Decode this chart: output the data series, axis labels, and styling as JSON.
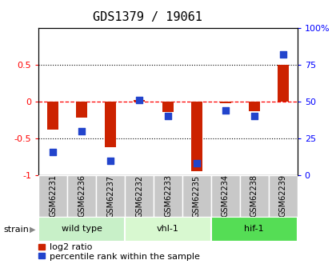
{
  "title": "GDS1379 / 19061",
  "samples": [
    "GSM62231",
    "GSM62236",
    "GSM62237",
    "GSM62232",
    "GSM62233",
    "GSM62235",
    "GSM62234",
    "GSM62238",
    "GSM62239"
  ],
  "log2_ratio": [
    -0.38,
    -0.22,
    -0.62,
    0.02,
    -0.14,
    -0.95,
    -0.02,
    -0.13,
    0.5
  ],
  "percentile_rank": [
    16,
    30,
    10,
    51,
    40,
    8,
    44,
    40,
    82
  ],
  "groups": [
    {
      "label": "wild type",
      "start": 0,
      "end": 3,
      "color": "#c8f0c8"
    },
    {
      "label": "vhl-1",
      "start": 3,
      "end": 6,
      "color": "#d8f8d0"
    },
    {
      "label": "hif-1",
      "start": 6,
      "end": 9,
      "color": "#55dd55"
    }
  ],
  "bar_color": "#cc2200",
  "dot_color": "#2244cc",
  "ylim_left": [
    -1,
    1
  ],
  "ylim_right": [
    0,
    100
  ],
  "hlines_dotted": [
    0.5,
    -0.5
  ],
  "legend_red": "log2 ratio",
  "legend_blue": "percentile rank within the sample",
  "ylabel_left_ticks": [
    -1,
    -0.5,
    0,
    0.5
  ],
  "ylabel_right_ticks": [
    0,
    25,
    50,
    75,
    100
  ],
  "title_fontsize": 11,
  "label_fontsize": 7,
  "group_fontsize": 8,
  "legend_fontsize": 8
}
